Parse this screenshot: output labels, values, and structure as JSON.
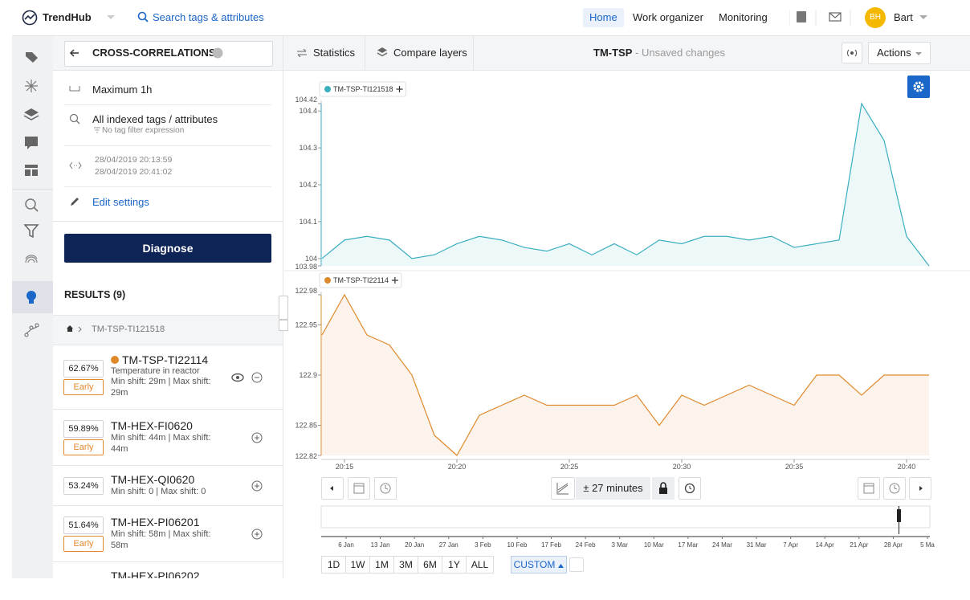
{
  "topbar": {
    "logo": "TrendHub",
    "search": "Search tags & attributes",
    "nav": [
      "Home",
      "Work organizer",
      "Monitoring"
    ],
    "avatar": "BH",
    "user": "Bart"
  },
  "panel": {
    "title": "CROSS-CORRELATIONS",
    "settings": {
      "range": "Maximum 1h",
      "scope": "All indexed tags / attributes",
      "filter": "No tag filter expression",
      "start": "28/04/2019 20:13:59",
      "end": "28/04/2019 20:41:02",
      "edit": "Edit settings"
    },
    "button": "Diagnose",
    "results_title": "RESULTS (9)",
    "breadcrumb": "TM-TSP-TI121518",
    "results": [
      {
        "score": "62.67%",
        "tag": "TM-TSP-TI22114",
        "description": "Temperature in reactor",
        "shift": "Min shift: 29m | Max shift: 29m",
        "badge": "Early"
      },
      {
        "score": "59.89%",
        "tag": "TM-HEX-FI0620",
        "shift": "Min shift: 44m | Max shift: 44m",
        "badge": "Early"
      },
      {
        "score": "53.24%",
        "tag": "TM-HEX-QI0620",
        "shift": "Min shift: 0 | Max shift: 0"
      },
      {
        "score": "51.64%",
        "tag": "TM-HEX-PI06201",
        "shift": "Min shift: 58m | Max shift: 58m",
        "badge": "Early"
      },
      {
        "tag": "TM-HEX-PI06202"
      }
    ]
  },
  "toolbar": {
    "tabs": [
      "Statistics",
      "Compare layers"
    ],
    "view": "TM-TSP",
    "status": "- Unsaved changes",
    "actions": "Actions"
  },
  "chart_data": [
    {
      "type": "area",
      "x": [
        "20:14",
        "20:15",
        "20:16",
        "20:17",
        "20:18",
        "20:19",
        "20:20",
        "20:21",
        "20:22",
        "20:23",
        "20:24",
        "20:25",
        "20:26",
        "20:27",
        "20:28",
        "20:29",
        "20:30",
        "20:31",
        "20:32",
        "20:33",
        "20:34",
        "20:35",
        "20:36",
        "20:37",
        "20:38",
        "20:39",
        "20:40",
        "20:41"
      ],
      "series": [
        {
          "name": "TM-TSP-TI121518",
          "color": "#3aaec0",
          "values": [
            104.0,
            104.05,
            104.06,
            104.05,
            104.0,
            104.01,
            104.04,
            104.06,
            104.05,
            104.03,
            104.02,
            104.04,
            104.01,
            104.04,
            104.01,
            104.05,
            104.04,
            104.06,
            104.06,
            104.05,
            104.06,
            104.03,
            104.04,
            104.05,
            104.42,
            104.32,
            104.06,
            103.98
          ]
        }
      ],
      "ylim": [
        103.98,
        104.42
      ],
      "yticks": [
        103.98,
        104,
        104.1,
        104.2,
        104.3,
        104.4,
        104.42
      ]
    },
    {
      "type": "area",
      "x": [
        "20:14",
        "20:15",
        "20:16",
        "20:17",
        "20:18",
        "20:19",
        "20:20",
        "20:21",
        "20:22",
        "20:23",
        "20:24",
        "20:25",
        "20:26",
        "20:27",
        "20:28",
        "20:29",
        "20:30",
        "20:31",
        "20:32",
        "20:33",
        "20:34",
        "20:35",
        "20:36",
        "20:37",
        "20:38",
        "20:39",
        "20:40",
        "20:41"
      ],
      "xticks": [
        "20:15",
        "20:20",
        "20:25",
        "20:30",
        "20:35",
        "20:40"
      ],
      "series": [
        {
          "name": "TM-TSP-TI22114",
          "color": "#e0892b",
          "values": [
            122.94,
            122.98,
            122.94,
            122.93,
            122.9,
            122.84,
            122.82,
            122.86,
            122.87,
            122.88,
            122.87,
            122.87,
            122.87,
            122.87,
            122.88,
            122.85,
            122.88,
            122.87,
            122.88,
            122.89,
            122.88,
            122.87,
            122.9,
            122.9,
            122.88,
            122.9,
            122.9,
            122.9
          ]
        }
      ],
      "ylim": [
        122.82,
        122.98
      ],
      "yticks": [
        122.82,
        122.85,
        122.9,
        122.95,
        122.98
      ]
    }
  ],
  "controls": {
    "window": "± 27 minutes",
    "navigator_ticks": [
      "6 Jan",
      "13 Jan",
      "20 Jan",
      "27 Jan",
      "3 Feb",
      "10 Feb",
      "17 Feb",
      "24 Feb",
      "3 Mar",
      "10 Mar",
      "17 Mar",
      "24 Mar",
      "31 Mar",
      "7 Apr",
      "14 Apr",
      "21 Apr",
      "28 Apr",
      "5 Ma"
    ],
    "zoom": [
      "1D",
      "1W",
      "1M",
      "3M",
      "6M",
      "1Y",
      "ALL"
    ],
    "custom": "CUSTOM"
  }
}
